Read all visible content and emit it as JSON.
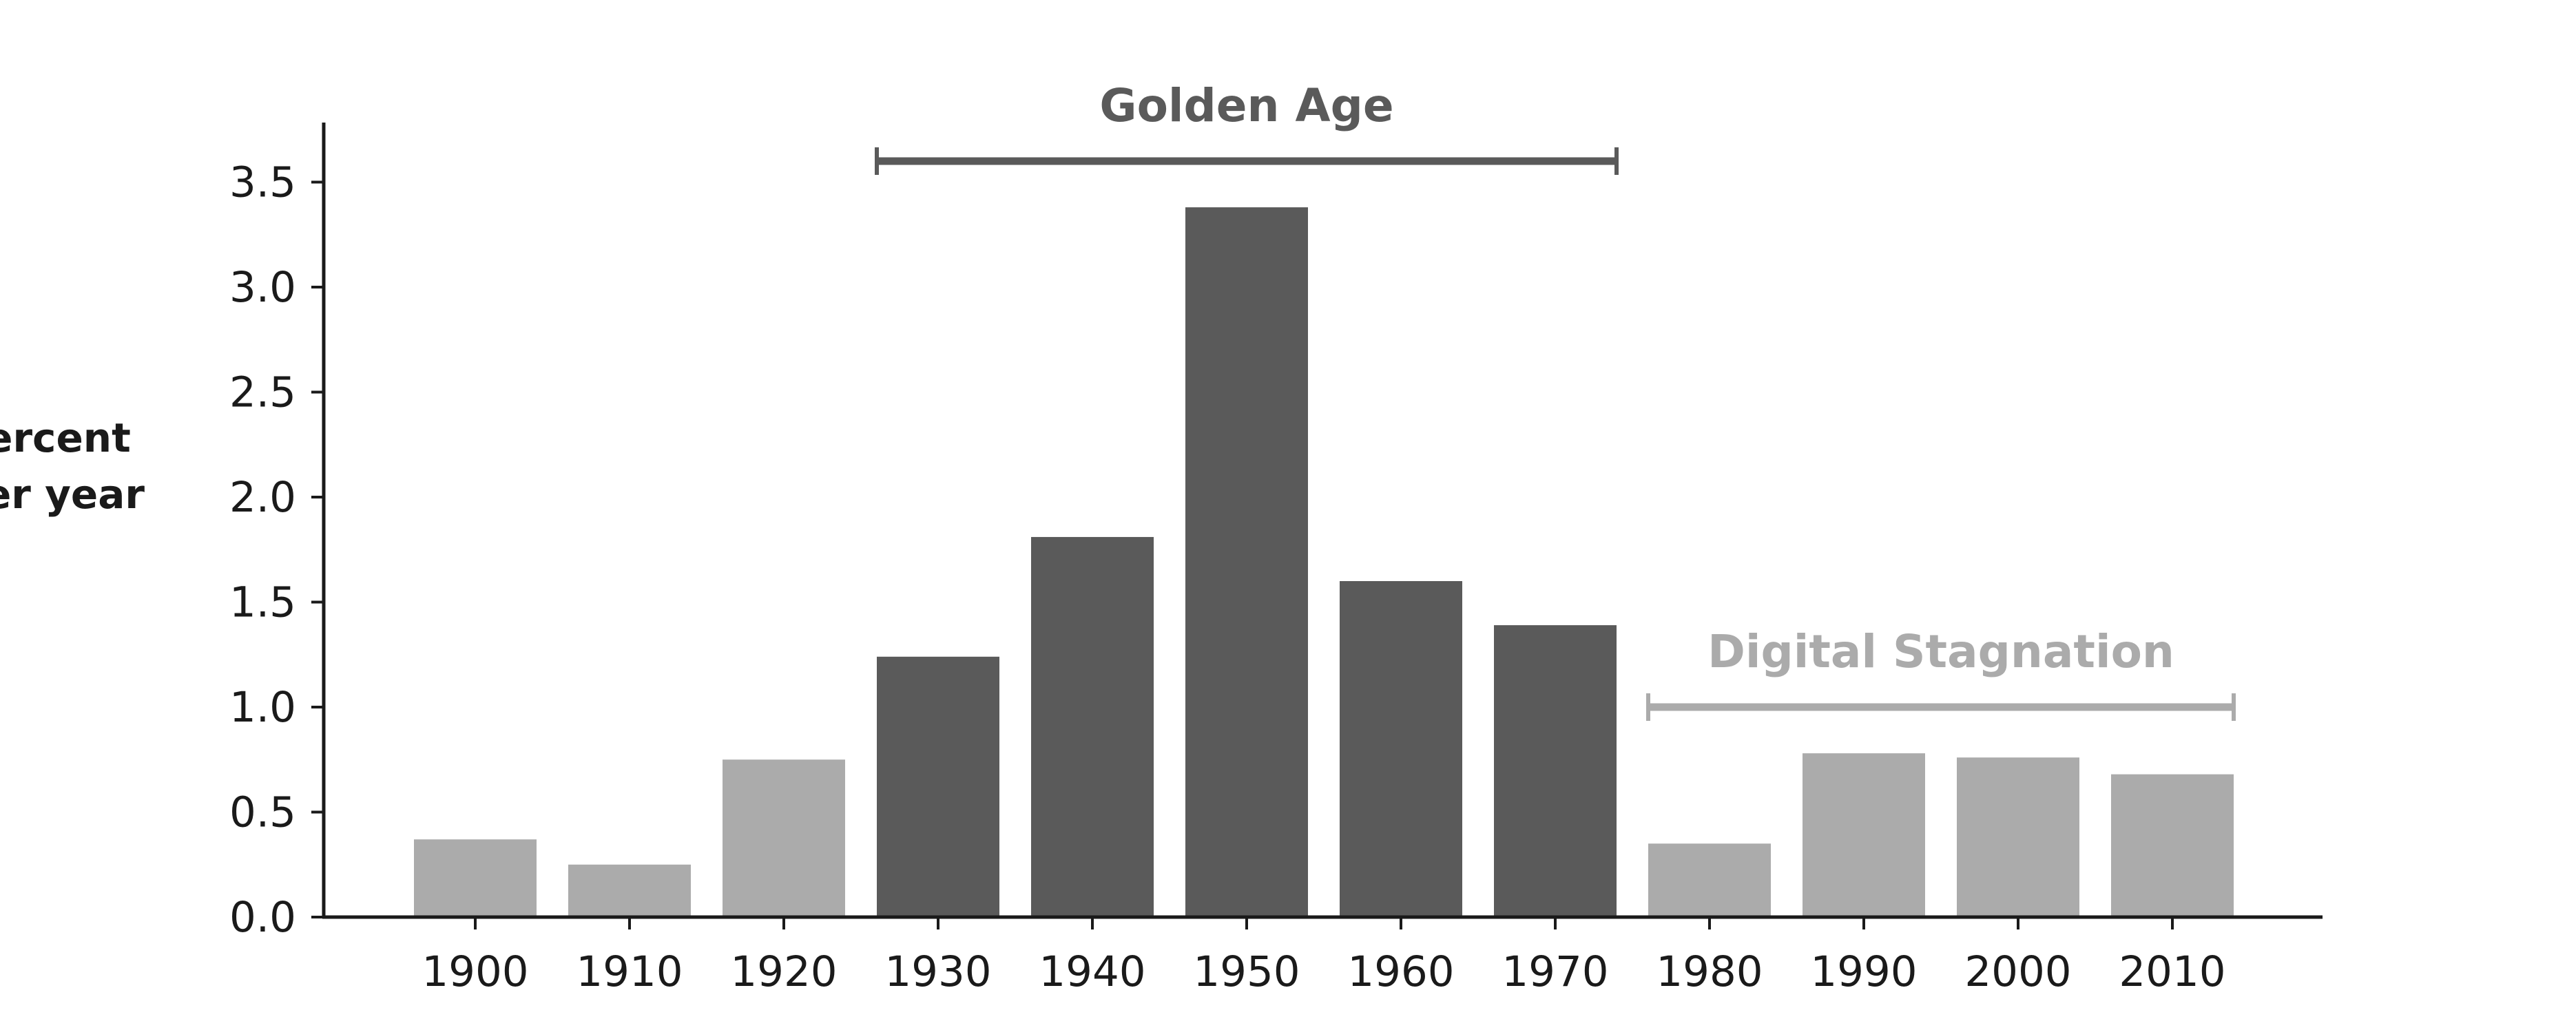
{
  "chart_data": {
    "type": "bar",
    "categories": [
      "1900",
      "1910",
      "1920",
      "1930",
      "1940",
      "1950",
      "1960",
      "1970",
      "1980",
      "1990",
      "2000",
      "2010"
    ],
    "values": [
      0.37,
      0.25,
      0.75,
      1.24,
      1.81,
      3.38,
      1.6,
      1.39,
      0.35,
      0.78,
      0.76,
      0.68
    ],
    "bar_groups": [
      "light",
      "light",
      "light",
      "dark",
      "dark",
      "dark",
      "dark",
      "dark",
      "light",
      "light",
      "light",
      "light"
    ],
    "colors": {
      "dark": "#5a5a5a",
      "light": "#ababab",
      "axis": "#1a1a1a",
      "golden_bracket": "#5a5a5a",
      "digital_bracket": "#ababab"
    },
    "ylabel_lines": [
      "Percent",
      "per year"
    ],
    "xlabel": "",
    "ylim": [
      0,
      3.75
    ],
    "yticks": [
      "0.0",
      "0.5",
      "1.0",
      "1.5",
      "2.0",
      "2.5",
      "3.0",
      "3.5"
    ],
    "grid": false,
    "annotations": [
      {
        "label": "Golden Age",
        "from_category": "1930",
        "to_category": "1970",
        "value": 3.6,
        "color_key": "golden_bracket"
      },
      {
        "label": "Digital Stagnation",
        "from_category": "1980",
        "to_category": "2010",
        "value": 1.0,
        "color_key": "digital_bracket"
      }
    ]
  }
}
